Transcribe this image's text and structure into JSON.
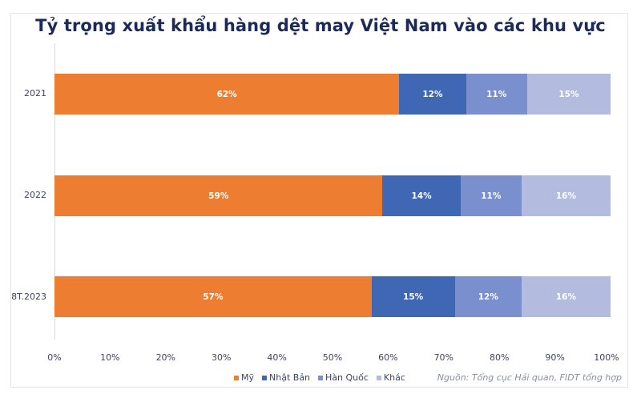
{
  "title": "Tỷ trọng xuất khẩu hàng dệt may Việt Nam vào các khu vực",
  "source": "Nguồn: Tổng cục Hải quan, FIDT tổng hợp",
  "colors": {
    "Mỹ": "#ed7d31",
    "Nhật Bản": "#3f67b4",
    "Hàn Quốc": "#7a8fcd",
    "Khác": "#b3bcde"
  },
  "legend": [
    {
      "label": "Mỹ",
      "color": "#ed7d31"
    },
    {
      "label": "Nhật Bản",
      "color": "#3f67b4"
    },
    {
      "label": "Hàn Quốc",
      "color": "#7a8fcd"
    },
    {
      "label": "Khác",
      "color": "#b3bcde"
    }
  ],
  "x_ticks": [
    "0%",
    "10%",
    "20%",
    "30%",
    "40%",
    "50%",
    "60%",
    "70%",
    "80%",
    "90%",
    "100%"
  ],
  "rows": [
    {
      "label": "2021",
      "segments": [
        {
          "name": "Mỹ",
          "value": 62,
          "text": "62%"
        },
        {
          "name": "Nhật Bản",
          "value": 12,
          "text": "12%"
        },
        {
          "name": "Hàn Quốc",
          "value": 11,
          "text": "11%"
        },
        {
          "name": "Khác",
          "value": 15,
          "text": "15%"
        }
      ]
    },
    {
      "label": "2022",
      "segments": [
        {
          "name": "Mỹ",
          "value": 59,
          "text": "59%"
        },
        {
          "name": "Nhật Bản",
          "value": 14,
          "text": "14%"
        },
        {
          "name": "Hàn Quốc",
          "value": 11,
          "text": "11%"
        },
        {
          "name": "Khác",
          "value": 16,
          "text": "16%"
        }
      ]
    },
    {
      "label": "8T.2023",
      "segments": [
        {
          "name": "Mỹ",
          "value": 57,
          "text": "57%"
        },
        {
          "name": "Nhật Bản",
          "value": 15,
          "text": "15%"
        },
        {
          "name": "Hàn Quốc",
          "value": 12,
          "text": "12%"
        },
        {
          "name": "Khác",
          "value": 16,
          "text": "16%"
        }
      ]
    }
  ],
  "chart_data": {
    "type": "bar",
    "orientation": "horizontal",
    "stacked": "percent",
    "title": "Tỷ trọng xuất khẩu hàng dệt may Việt Nam vào các khu vực",
    "categories": [
      "2021",
      "2022",
      "8T.2023"
    ],
    "series": [
      {
        "name": "Mỹ",
        "values": [
          62,
          59,
          57
        ],
        "color": "#ed7d31"
      },
      {
        "name": "Nhật Bản",
        "values": [
          12,
          14,
          15
        ],
        "color": "#3f67b4"
      },
      {
        "name": "Hàn Quốc",
        "values": [
          11,
          11,
          12
        ],
        "color": "#7a8fcd"
      },
      {
        "name": "Khác",
        "values": [
          15,
          16,
          16
        ],
        "color": "#b3bcde"
      }
    ],
    "xlabel": "",
    "ylabel": "",
    "xlim": [
      0,
      100
    ],
    "x_tick_labels": [
      "0%",
      "10%",
      "20%",
      "30%",
      "40%",
      "50%",
      "60%",
      "70%",
      "80%",
      "90%",
      "100%"
    ],
    "data_labels": true,
    "grid": false,
    "legend_position": "bottom",
    "annotation": "Nguồn: Tổng cục Hải quan, FIDT tổng hợp"
  }
}
